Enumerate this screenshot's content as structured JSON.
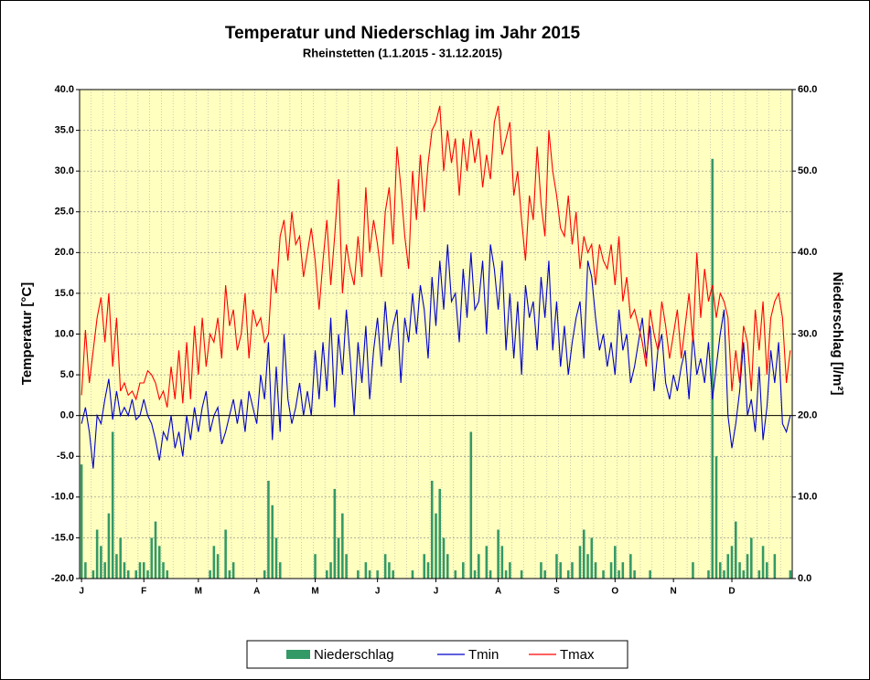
{
  "chart_data": {
    "type": "bar_line",
    "title": "Temperatur und Niederschlag im Jahr 2015",
    "subtitle": "Rheinstetten (1.1.2015 - 31.12.2015)",
    "ylabel": "Temperatur [°C]",
    "y2label": "Niederschlag [l/m²]",
    "categories": [
      "J",
      null,
      null,
      null,
      null,
      null,
      null,
      null,
      null,
      null,
      null,
      null,
      null,
      null,
      null,
      null,
      "F",
      null,
      null,
      null,
      null,
      null,
      null,
      null,
      null,
      null,
      null,
      null,
      null,
      null,
      "M",
      null,
      null,
      null,
      null,
      null,
      null,
      null,
      null,
      null,
      null,
      null,
      null,
      null,
      null,
      "A",
      null,
      null,
      null,
      null,
      null,
      null,
      null,
      null,
      null,
      null,
      null,
      null,
      null,
      null,
      "M",
      null,
      null,
      null,
      null,
      null,
      null,
      null,
      null,
      null,
      null,
      null,
      null,
      null,
      null,
      null,
      "J",
      null,
      null,
      null,
      null,
      null,
      null,
      null,
      null,
      null,
      null,
      null,
      null,
      null,
      null,
      "J",
      null,
      null,
      null,
      null,
      null,
      null,
      null,
      null,
      null,
      null,
      null,
      null,
      null,
      null,
      null,
      "A",
      null,
      null,
      null,
      null,
      null,
      null,
      null,
      null,
      null,
      null,
      null,
      null,
      null,
      null,
      "S",
      null,
      null,
      null,
      null,
      null,
      null,
      null,
      null,
      null,
      null,
      null,
      null,
      null,
      null,
      "O",
      null,
      null,
      null,
      null,
      null,
      null,
      null,
      null,
      null,
      null,
      null,
      null,
      null,
      null,
      "N",
      null,
      null,
      null,
      null,
      null,
      null,
      null,
      null,
      null,
      null,
      null,
      null,
      null,
      null,
      "D",
      null,
      null,
      null,
      null,
      null,
      null,
      null,
      null,
      null,
      null,
      null,
      null,
      null,
      null,
      null
    ],
    "series": [
      {
        "name": "Niederschlag",
        "color": "#339966",
        "kind": "bar",
        "axis": "y2",
        "values": [
          14,
          2,
          0,
          1,
          6,
          4,
          2,
          8,
          18,
          3,
          5,
          2,
          1,
          0,
          1,
          2,
          2,
          1,
          5,
          7,
          4,
          2,
          1,
          0,
          0,
          0,
          0,
          0,
          0,
          0,
          0,
          0,
          0,
          1,
          4,
          3,
          0,
          6,
          1,
          2,
          0,
          0,
          0,
          0,
          0,
          0,
          0,
          1,
          12,
          9,
          5,
          2,
          0,
          0,
          0,
          0,
          0,
          0,
          0,
          0,
          3,
          0,
          0,
          1,
          2,
          11,
          5,
          8,
          3,
          0,
          0,
          1,
          0,
          2,
          1,
          0,
          1,
          0,
          3,
          2,
          1,
          0,
          0,
          0,
          0,
          1,
          0,
          0,
          3,
          2,
          12,
          8,
          11,
          5,
          3,
          0,
          1,
          0,
          2,
          0,
          18,
          1,
          3,
          0,
          4,
          1,
          0,
          6,
          4,
          1,
          2,
          0,
          0,
          1,
          0,
          0,
          0,
          0,
          2,
          1,
          0,
          0,
          3,
          2,
          0,
          1,
          2,
          0,
          4,
          6,
          3,
          5,
          2,
          0,
          1,
          0,
          2,
          4,
          1,
          2,
          0,
          3,
          1,
          0,
          0,
          0,
          1,
          0,
          0,
          0,
          0,
          0,
          0,
          0,
          0,
          0,
          0,
          2,
          0,
          0,
          0,
          1,
          51.5,
          15,
          2,
          1,
          3,
          4,
          7,
          2,
          1,
          3,
          5,
          0,
          1,
          4,
          2,
          0,
          3,
          0,
          0,
          0,
          1
        ]
      },
      {
        "name": "Tmin",
        "color": "#0000cc",
        "kind": "line",
        "values": [
          -1,
          1,
          -2,
          -6.5,
          0,
          -1,
          2,
          4.5,
          -0.5,
          3,
          0,
          1,
          0,
          2,
          -0.5,
          0,
          2,
          0,
          -1,
          -3,
          -5.5,
          -2,
          -3,
          0,
          -4,
          -2,
          -5,
          0,
          -3,
          1,
          -2,
          1,
          3,
          -2,
          0,
          1,
          -3.5,
          -2,
          0,
          2,
          -1,
          2,
          -2,
          3,
          1,
          -1,
          5,
          2,
          9,
          -3,
          6,
          -2,
          10,
          2,
          -1,
          1,
          4,
          0,
          3,
          0,
          8,
          2,
          9,
          3,
          12,
          1,
          10,
          5,
          13,
          7,
          0,
          9,
          4,
          11,
          2,
          8,
          12,
          6,
          14,
          8,
          11,
          13,
          4,
          12,
          9,
          15,
          10,
          16,
          13,
          7,
          17,
          11,
          19,
          13,
          21,
          14,
          15,
          9,
          18,
          12,
          20,
          13,
          14,
          19,
          10,
          21,
          18,
          13,
          19,
          8,
          15,
          7,
          14,
          5,
          16,
          12,
          14,
          8,
          17,
          12,
          19,
          8,
          14,
          6,
          11,
          5,
          9,
          12,
          14,
          7,
          19,
          17,
          12,
          8,
          10,
          6,
          9,
          5,
          13,
          8,
          10,
          4,
          6,
          9,
          12,
          7,
          11,
          3,
          8,
          10,
          4,
          2,
          5,
          3,
          6,
          8,
          2,
          10,
          5,
          7,
          4,
          9,
          2,
          6,
          10,
          13,
          0,
          -4,
          -1,
          3,
          9,
          0,
          2,
          -2,
          6,
          -3,
          1,
          8,
          4,
          9,
          -1,
          -2,
          0
        ]
      },
      {
        "name": "Tmax",
        "color": "#ff0000",
        "kind": "line",
        "values": [
          2.5,
          10.5,
          4,
          8,
          12,
          14.5,
          9,
          15,
          6,
          12,
          3,
          4,
          2.5,
          3,
          2,
          4,
          4,
          5.5,
          5,
          4,
          2,
          3,
          1,
          6,
          2,
          8,
          1.5,
          9,
          2,
          11,
          5,
          12,
          6,
          10,
          9,
          12,
          7,
          16,
          11,
          13,
          8,
          10,
          15,
          7,
          13,
          11,
          12,
          9,
          10,
          18,
          15,
          22,
          24,
          19,
          25,
          21,
          22,
          17,
          20,
          23,
          19,
          13,
          19,
          24,
          16,
          22,
          29,
          15,
          21,
          18,
          16,
          22,
          17,
          28,
          20,
          24,
          21,
          17,
          25,
          28,
          21,
          33,
          28,
          22,
          18,
          30,
          24,
          32,
          25,
          31,
          35,
          36,
          38,
          30,
          35,
          31,
          34,
          27,
          34,
          30,
          35,
          31,
          34,
          28,
          32,
          29,
          36,
          38,
          32,
          34,
          36,
          27,
          30,
          24,
          19,
          27,
          24,
          33,
          26,
          22,
          35,
          30,
          27,
          23,
          22,
          27,
          21,
          25,
          18,
          22,
          20,
          21,
          16,
          21,
          19,
          18,
          21,
          16,
          22,
          14,
          17,
          12,
          13,
          11,
          9,
          6,
          13,
          10,
          8,
          14,
          11,
          7,
          10,
          13,
          7,
          11,
          15,
          9,
          20,
          12,
          18,
          14,
          16,
          12,
          15,
          14,
          12,
          3,
          8,
          4,
          11,
          9,
          3,
          13,
          8,
          14,
          5,
          12,
          14,
          15,
          12,
          4,
          8
        ]
      }
    ],
    "ylim": [
      -20,
      40
    ],
    "yticks": [
      {
        "value": -20,
        "label": "-20.0"
      },
      {
        "value": -15,
        "label": "-15.0"
      },
      {
        "value": -10,
        "label": "-10.0"
      },
      {
        "value": -5,
        "label": "-5.0"
      },
      {
        "value": 0,
        "label": "0.0"
      },
      {
        "value": 5,
        "label": "5.0"
      },
      {
        "value": 10,
        "label": "10.0"
      },
      {
        "value": 15,
        "label": "15.0"
      },
      {
        "value": 20,
        "label": "20.0"
      },
      {
        "value": 25,
        "label": "25.0"
      },
      {
        "value": 30,
        "label": "30.0"
      },
      {
        "value": 35,
        "label": "35.0"
      },
      {
        "value": 40,
        "label": "40.0"
      }
    ],
    "y2lim": [
      0,
      60
    ],
    "y2ticks": [
      {
        "value": 0,
        "label": "0.0"
      },
      {
        "value": 10,
        "label": "10.0"
      },
      {
        "value": 20,
        "label": "20.0"
      },
      {
        "value": 30,
        "label": "30.0"
      },
      {
        "value": 40,
        "label": "40.0"
      },
      {
        "value": 50,
        "label": "50.0"
      },
      {
        "value": 60,
        "label": "60.0"
      }
    ],
    "grid": true,
    "legend": "bottom"
  }
}
